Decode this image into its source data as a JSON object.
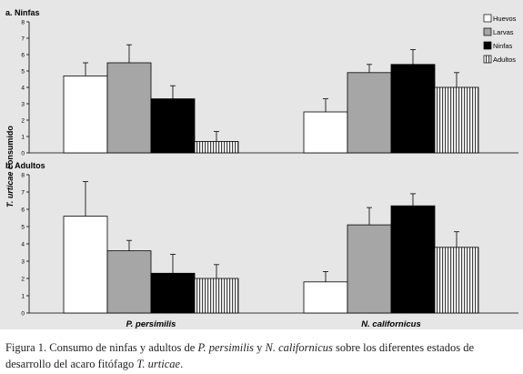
{
  "y_axis_label": {
    "italic": "T. urticae",
    "rest": "  consumido"
  },
  "legend": [
    {
      "label": "Huevos",
      "fill": "white"
    },
    {
      "label": "Larvas",
      "fill": "gray"
    },
    {
      "label": "Ninfas",
      "fill": "black"
    },
    {
      "label": "Adultos",
      "fill": "hatch"
    }
  ],
  "chart_data": [
    {
      "type": "bar",
      "title": "a. Ninfas",
      "categories": [
        "P. persimilis",
        "N. californicus"
      ],
      "ylim": [
        0,
        8
      ],
      "yticks": [
        0,
        1,
        2,
        3,
        4,
        5,
        6,
        7,
        8
      ],
      "series": [
        {
          "name": "Huevos",
          "values": [
            4.7,
            2.5
          ],
          "errors": [
            0.8,
            0.8
          ]
        },
        {
          "name": "Larvas",
          "values": [
            5.5,
            4.9
          ],
          "errors": [
            1.1,
            0.5
          ]
        },
        {
          "name": "Ninfas",
          "values": [
            3.3,
            5.4
          ],
          "errors": [
            0.8,
            0.9
          ]
        },
        {
          "name": "Adultos",
          "values": [
            0.7,
            4.0
          ],
          "errors": [
            0.6,
            0.9
          ]
        }
      ]
    },
    {
      "type": "bar",
      "title": "b. Adultos",
      "categories": [
        "P. persimilis",
        "N. californicus"
      ],
      "ylim": [
        0,
        8
      ],
      "yticks": [
        0,
        1,
        2,
        3,
        4,
        5,
        6,
        7,
        8
      ],
      "series": [
        {
          "name": "Huevos",
          "values": [
            5.6,
            1.8
          ],
          "errors": [
            2.0,
            0.6
          ]
        },
        {
          "name": "Larvas",
          "values": [
            3.6,
            5.1
          ],
          "errors": [
            0.6,
            1.0
          ]
        },
        {
          "name": "Ninfas",
          "values": [
            2.3,
            6.2
          ],
          "errors": [
            1.1,
            0.7
          ]
        },
        {
          "name": "Adultos",
          "values": [
            2.0,
            3.8
          ],
          "errors": [
            0.8,
            0.9
          ]
        }
      ]
    }
  ],
  "caption": {
    "parts": [
      {
        "text": "Figura 1. Consumo de ninfas y adultos de ",
        "italic": false
      },
      {
        "text": "P. persimilis",
        "italic": true
      },
      {
        "text": " y ",
        "italic": false
      },
      {
        "text": "N. californicus",
        "italic": true
      },
      {
        "text": " sobre los diferentes estados de desarrollo del acaro fitófago ",
        "italic": false
      },
      {
        "text": "T. urticae",
        "italic": true
      },
      {
        "text": ".",
        "italic": false
      }
    ]
  }
}
